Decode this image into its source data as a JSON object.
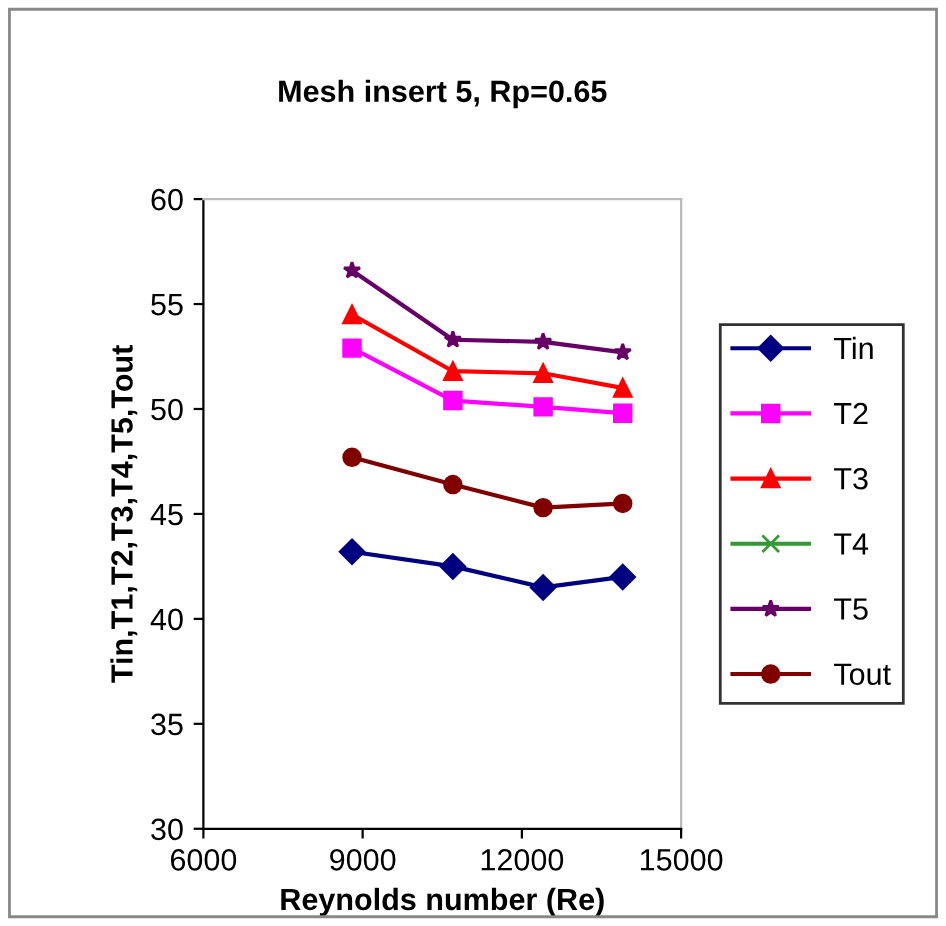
{
  "chart_data": {
    "type": "line",
    "title": "Mesh insert 5, Rp=0.65",
    "xlabel": "Reynolds number (Re)",
    "ylabel": "Tin,T1,T2,T3,T4,T5,Tout",
    "x": [
      8800,
      10700,
      12400,
      13900
    ],
    "series": [
      {
        "name": "Tin",
        "color": "#000080",
        "marker": "diamond",
        "values": [
          43.2,
          42.5,
          41.5,
          42.0
        ]
      },
      {
        "name": "T2",
        "color": "#ff00ff",
        "marker": "square",
        "values": [
          52.9,
          50.4,
          50.1,
          49.8
        ]
      },
      {
        "name": "T3",
        "color": "#ff0000",
        "marker": "triangle",
        "values": [
          54.5,
          51.8,
          51.7,
          51.0
        ]
      },
      {
        "name": "T4",
        "color": "#339933",
        "marker": "cross",
        "values": [
          null,
          null,
          null,
          null
        ]
      },
      {
        "name": "T5",
        "color": "#660066",
        "marker": "star",
        "values": [
          56.6,
          53.3,
          53.2,
          52.7
        ]
      },
      {
        "name": "Tout",
        "color": "#800000",
        "marker": "circle",
        "values": [
          47.7,
          46.4,
          45.3,
          45.5
        ]
      }
    ],
    "xlim": [
      6000,
      15000
    ],
    "xticks": [
      6000,
      9000,
      12000,
      15000
    ],
    "ylim": [
      30,
      60
    ],
    "yticks": [
      30,
      35,
      40,
      45,
      50,
      55,
      60
    ],
    "grid": false,
    "legend": "right",
    "line_style": "solid"
  }
}
